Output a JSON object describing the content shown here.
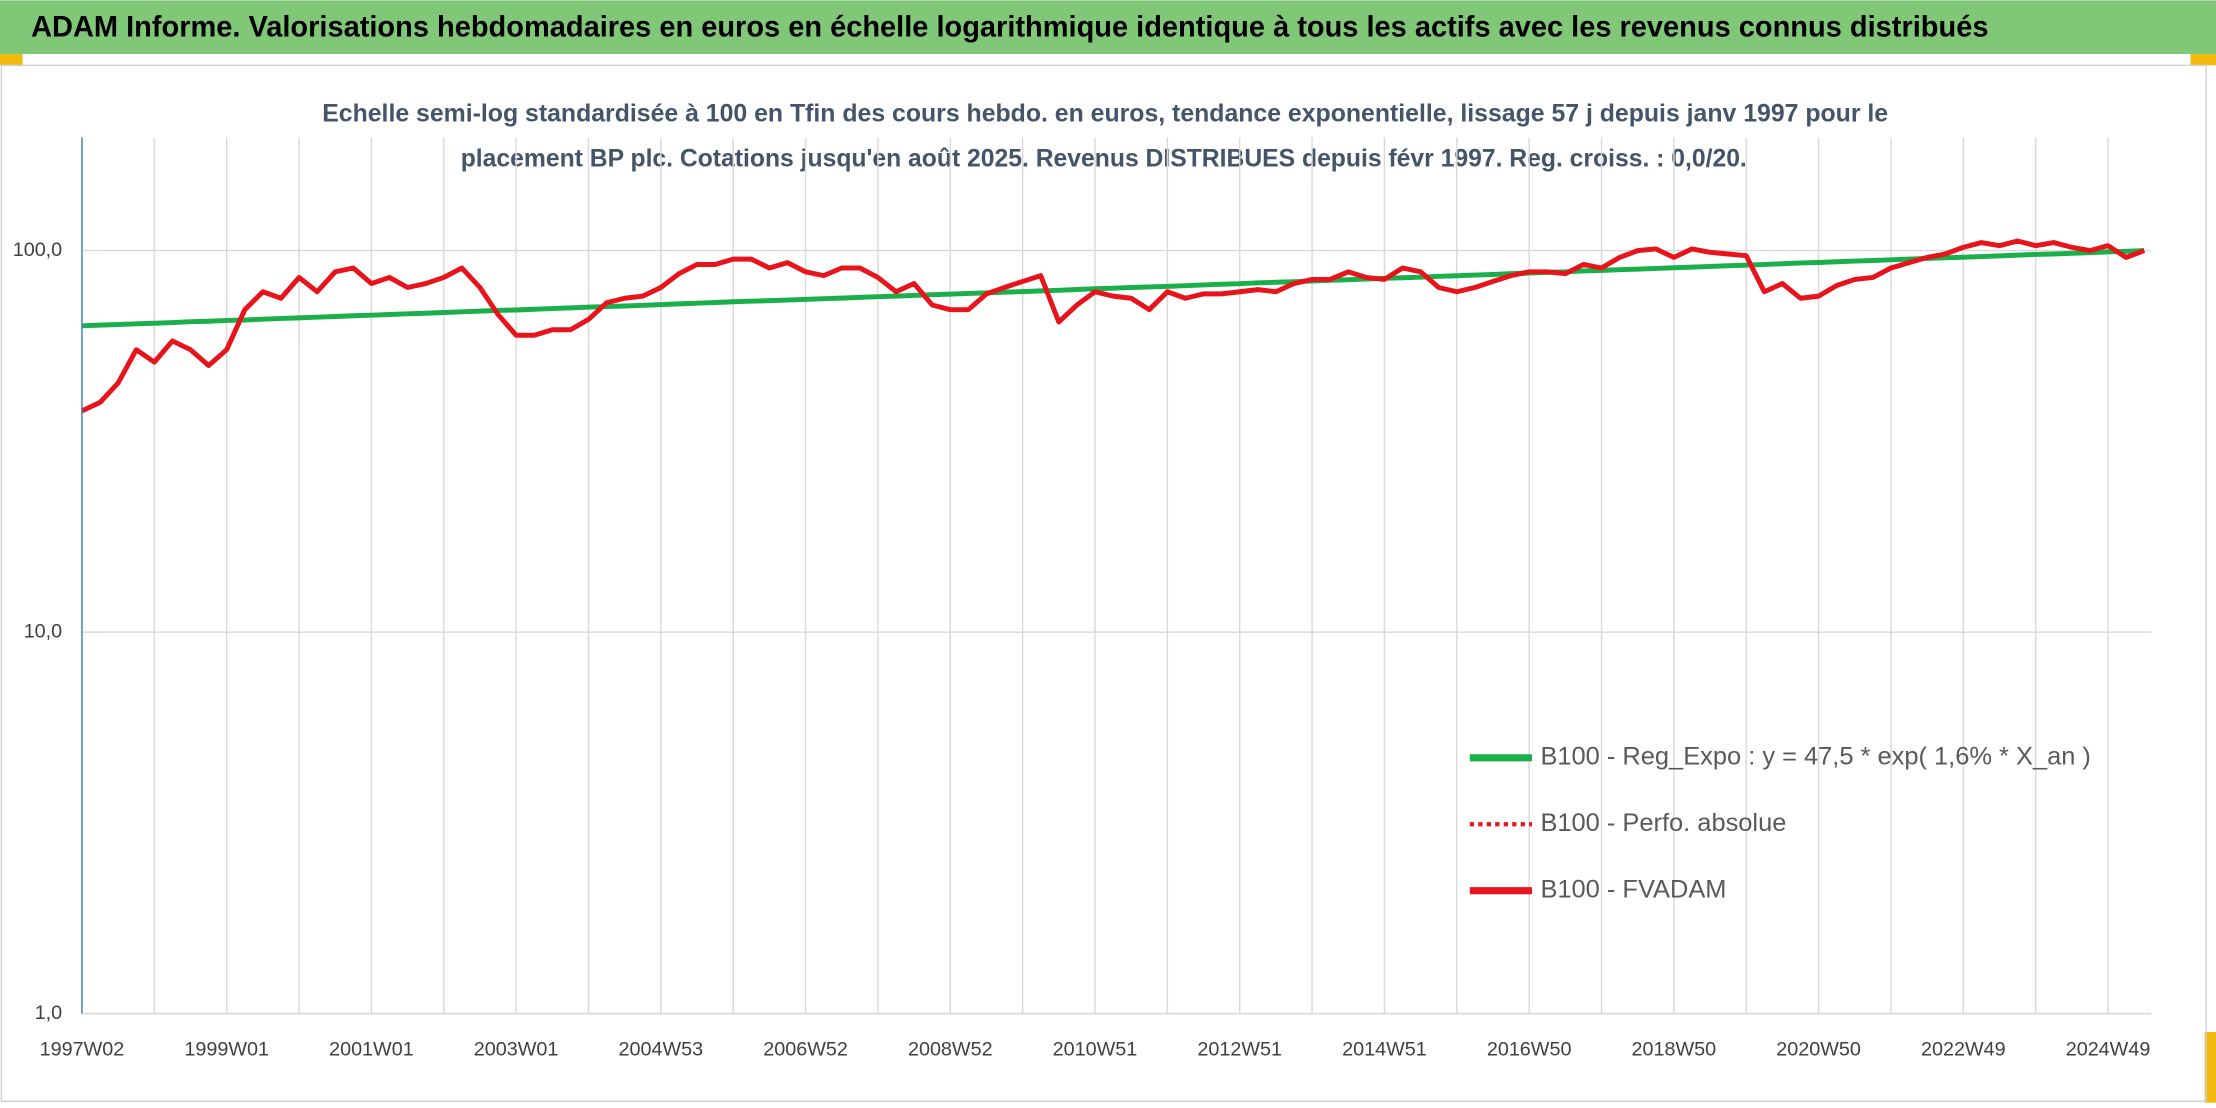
{
  "header": {
    "title": "ADAM Informe. Valorisations hebdomadaires en euros en échelle logarithmique identique à tous les actifs avec les revenus connus distribués"
  },
  "chart_data": {
    "type": "line",
    "title": [
      "Echelle semi-log standardisée à 100 en Tfin des cours hebdo. en euros, tendance exponentielle, lissage 57 j depuis janv 1997 pour le",
      "placement BP plc. Cotations jusqu'en août 2025. Revenus DISTRIBUES depuis févr 1997. Reg. croiss. : 0,0/20."
    ],
    "categories": [
      "1997W02",
      null,
      null,
      null,
      null,
      null,
      null,
      null,
      "1999W01",
      null,
      null,
      null,
      null,
      null,
      null,
      null,
      "2001W01",
      null,
      null,
      null,
      null,
      null,
      null,
      null,
      "2003W01",
      null,
      null,
      null,
      null,
      null,
      null,
      null,
      "2004W53",
      null,
      null,
      null,
      null,
      null,
      null,
      null,
      "2006W52",
      null,
      null,
      null,
      null,
      null,
      null,
      null,
      "2008W52",
      null,
      null,
      null,
      null,
      null,
      null,
      null,
      "2010W51",
      null,
      null,
      null,
      null,
      null,
      null,
      null,
      "2012W51",
      null,
      null,
      null,
      null,
      null,
      null,
      null,
      "2014W51",
      null,
      null,
      null,
      null,
      null,
      null,
      null,
      "2016W50",
      null,
      null,
      null,
      null,
      null,
      null,
      null,
      "2018W50",
      null,
      null,
      null,
      null,
      null,
      null,
      null,
      "2020W50",
      null,
      null,
      null,
      null,
      null,
      null,
      null,
      "2022W49",
      null,
      null,
      null,
      null,
      null,
      null,
      null,
      "2024W49",
      null,
      null
    ],
    "series": [
      {
        "name": "B100 - Reg_Expo : y = 47,5 * exp( 1,6% *  X_an )",
        "color": "#1aaf4b",
        "style": "solid",
        "values": [
          63.5,
          63.8,
          64.0,
          64.3,
          64.5,
          64.8,
          65.1,
          65.3,
          65.6,
          65.8,
          66.1,
          66.4,
          66.6,
          66.9,
          67.2,
          67.5,
          67.7,
          68.0,
          68.3,
          68.5,
          68.8,
          69.1,
          69.4,
          69.7,
          69.9,
          70.2,
          70.5,
          70.8,
          71.1,
          71.3,
          71.6,
          71.9,
          72.2,
          72.5,
          72.8,
          73.1,
          73.4,
          73.7,
          73.9,
          74.2,
          74.5,
          74.8,
          75.1,
          75.4,
          75.7,
          76.0,
          76.3,
          76.6,
          76.9,
          77.2,
          77.5,
          77.8,
          78.1,
          78.4,
          78.7,
          79.1,
          79.4,
          79.7,
          80.0,
          80.3,
          80.6,
          80.9,
          81.3,
          81.6,
          81.9,
          82.3,
          82.6,
          82.9,
          83.2,
          83.6,
          83.9,
          84.2,
          84.6,
          84.9,
          85.2,
          85.6,
          85.9,
          86.3,
          86.6,
          87.0,
          87.3,
          87.7,
          88.0,
          88.4,
          88.7,
          89.1,
          89.4,
          89.8,
          90.2,
          90.5,
          90.9,
          91.3,
          91.6,
          92.0,
          92.4,
          92.8,
          93.1,
          93.5,
          93.9,
          94.2,
          94.6,
          95.0,
          95.4,
          95.7,
          96.1,
          96.5,
          96.9,
          97.3,
          97.7,
          98.0,
          98.4,
          98.8,
          99.2,
          99.6,
          100.0
        ]
      },
      {
        "name": "B100 - Perfo. absolue",
        "color": "#e8141b",
        "style": "dotted",
        "values": [
          38,
          40,
          45,
          55,
          51,
          58,
          55,
          50,
          55,
          70,
          78,
          75,
          85,
          78,
          88,
          90,
          82,
          85,
          80,
          82,
          85,
          90,
          80,
          68,
          60,
          60,
          62,
          62,
          66,
          73,
          75,
          76,
          80,
          87,
          92,
          92,
          95,
          95,
          90,
          93,
          88,
          86,
          90,
          90,
          85,
          78,
          82,
          72,
          70,
          70,
          77,
          80,
          83,
          86,
          65,
          72,
          78,
          76,
          75,
          70,
          78,
          75,
          77,
          77,
          78,
          79,
          78,
          82,
          84,
          84,
          88,
          85,
          84,
          90,
          88,
          80,
          78,
          80,
          83,
          86,
          88,
          88,
          87,
          92,
          90,
          96,
          100,
          101,
          96,
          101,
          99,
          98,
          97,
          78,
          82,
          75,
          76,
          81,
          84,
          85,
          90,
          93,
          96,
          98,
          102,
          105,
          103,
          106,
          103,
          105,
          102,
          100,
          103,
          96,
          100
        ]
      },
      {
        "name": "B100 - FVADAM",
        "color": "#e8141b",
        "style": "solid",
        "values": [
          38,
          40,
          45,
          55,
          51,
          58,
          55,
          50,
          55,
          70,
          78,
          75,
          85,
          78,
          88,
          90,
          82,
          85,
          80,
          82,
          85,
          90,
          80,
          68,
          60,
          60,
          62,
          62,
          66,
          73,
          75,
          76,
          80,
          87,
          92,
          92,
          95,
          95,
          90,
          93,
          88,
          86,
          90,
          90,
          85,
          78,
          82,
          72,
          70,
          70,
          77,
          80,
          83,
          86,
          65,
          72,
          78,
          76,
          75,
          70,
          78,
          75,
          77,
          77,
          78,
          79,
          78,
          82,
          84,
          84,
          88,
          85,
          84,
          90,
          88,
          80,
          78,
          80,
          83,
          86,
          88,
          88,
          87,
          92,
          90,
          96,
          100,
          101,
          96,
          101,
          99,
          98,
          97,
          78,
          82,
          75,
          76,
          81,
          84,
          85,
          90,
          93,
          96,
          98,
          102,
          105,
          103,
          106,
          103,
          105,
          102,
          100,
          103,
          96,
          100
        ]
      }
    ],
    "ylog": true,
    "ylim": [
      1,
      198
    ],
    "yticks": [
      {
        "value": 1,
        "label": "1,0"
      },
      {
        "value": 10,
        "label": "10,0"
      },
      {
        "value": 100,
        "label": "100,0"
      }
    ],
    "grid": true,
    "legend": "lower right"
  }
}
